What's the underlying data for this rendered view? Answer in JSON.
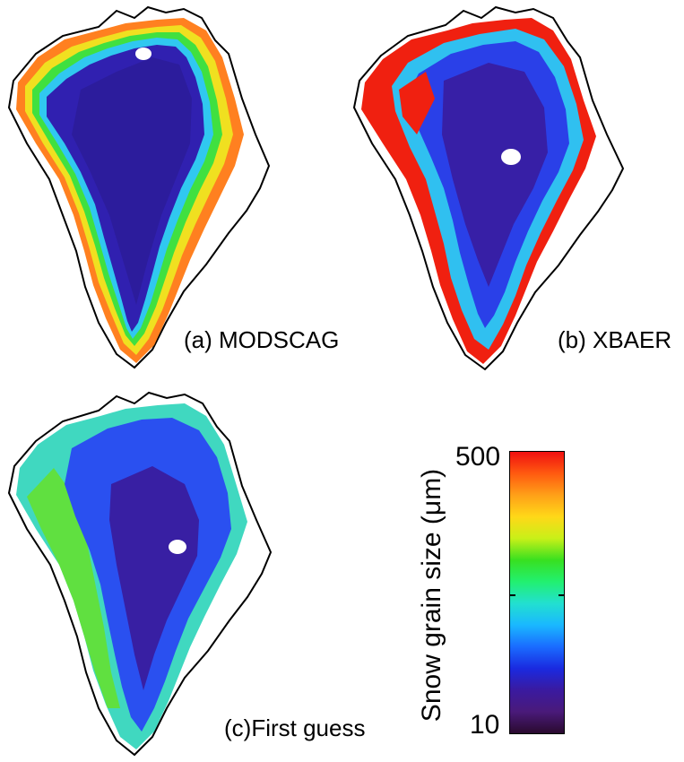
{
  "panels": [
    {
      "label": "(a) MODSCAG"
    },
    {
      "label": "(b) XBAER"
    },
    {
      "label": "(c)First guess"
    }
  ],
  "colorbar": {
    "title": "Snow grain size (μm)",
    "max_label": "500",
    "min_label": "10",
    "colors": [
      "#2a0a2e",
      "#4a1a7a",
      "#3a1aa0",
      "#1a2ae0",
      "#1a6cff",
      "#1ab8ff",
      "#22e0d0",
      "#22f070",
      "#38e020",
      "#c8f018",
      "#ffd818",
      "#ffa018",
      "#ff5a10",
      "#f01010"
    ]
  },
  "map_colors": {
    "interior_dark": "#3a1a8a",
    "interior": "#3020b0",
    "blue": "#2a40e8",
    "light_blue": "#3aa0ff",
    "cyan": "#30d8e0",
    "green": "#40e040",
    "yellow": "#f0e020",
    "orange": "#ff9020",
    "red": "#f02010",
    "coast": "#000000"
  }
}
